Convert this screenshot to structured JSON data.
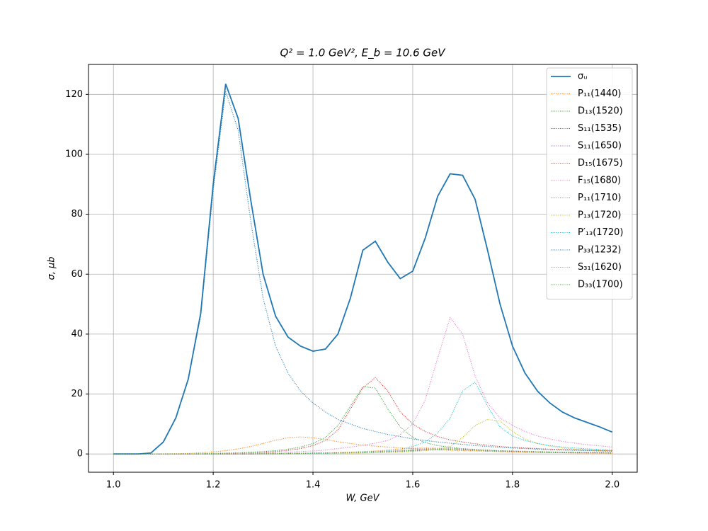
{
  "chart_data": {
    "type": "line",
    "title": "Q² = 1.0 GeV²,  E_b = 10.6 GeV",
    "x_label": "W, GeV",
    "y_label": "σ, μb",
    "xlim": [
      0.95,
      2.05
    ],
    "ylim": [
      -6.1,
      130
    ],
    "xticks": [
      {
        "value": 1,
        "label": "1.0"
      },
      1.2,
      1.4,
      1.6,
      1.8,
      {
        "value": 2,
        "label": "2.0"
      }
    ],
    "yticks": [
      0,
      20,
      40,
      60,
      80,
      100,
      120
    ],
    "grid": true,
    "legend": "upper right",
    "x": [
      1.0,
      1.025,
      1.05,
      1.075,
      1.1,
      1.125,
      1.15,
      1.175,
      1.2,
      1.225,
      1.25,
      1.275,
      1.3,
      1.325,
      1.35,
      1.375,
      1.4,
      1.425,
      1.45,
      1.475,
      1.5,
      1.525,
      1.55,
      1.575,
      1.6,
      1.625,
      1.65,
      1.675,
      1.7,
      1.725,
      1.75,
      1.775,
      1.8,
      1.825,
      1.85,
      1.875,
      1.9,
      1.925,
      1.95,
      1.975,
      2.0
    ],
    "series": [
      {
        "name": "σᵤ",
        "color": "#1f77b4",
        "style": "solid",
        "values": [
          0,
          0,
          0,
          0.3,
          4,
          12,
          25,
          47,
          90,
          123.5,
          112,
          85,
          60,
          46,
          39,
          36,
          34.3,
          35,
          40,
          52,
          68,
          71,
          64,
          58.5,
          61,
          72,
          86,
          93.5,
          93,
          85,
          68,
          50,
          36,
          27,
          21,
          17,
          14,
          12,
          10.5,
          9,
          7.3
        ]
      },
      {
        "name": "P₁₁(1440)",
        "color": "#ff7f0e",
        "style": "dotted",
        "values": [
          0,
          0,
          0,
          0,
          0.05,
          0.1,
          0.2,
          0.4,
          0.7,
          1.1,
          1.7,
          2.5,
          3.5,
          4.6,
          5.4,
          5.7,
          5.4,
          4.8,
          4.1,
          3.5,
          3,
          2.6,
          2.3,
          2,
          1.8,
          1.6,
          1.4,
          1.2,
          1.1,
          1,
          0.9,
          0.8,
          0.7,
          0.6,
          0.55,
          0.5,
          0.45,
          0.4,
          0.35,
          0.3,
          0.3
        ]
      },
      {
        "name": "D₁₃(1520)",
        "color": "#2ca02c",
        "style": "dotted",
        "values": [
          0,
          0,
          0,
          0,
          0,
          0,
          0,
          0.1,
          0.2,
          0.3,
          0.4,
          0.6,
          0.8,
          1.1,
          1.6,
          2.3,
          3.5,
          5.5,
          9.5,
          16,
          22.5,
          22,
          15,
          9,
          5.5,
          3.8,
          2.8,
          2.2,
          1.8,
          1.5,
          1.2,
          1,
          0.9,
          0.8,
          0.7,
          0.6,
          0.5,
          0.45,
          0.4,
          0.35,
          0.3
        ]
      },
      {
        "name": "S₁₁(1535)",
        "color": "#d62728",
        "style": "dotted",
        "values": [
          0,
          0,
          0,
          0,
          0,
          0,
          0,
          0,
          0,
          0.1,
          0.2,
          0.3,
          0.5,
          0.8,
          1.2,
          1.8,
          2.8,
          4.5,
          8,
          15,
          22,
          25.5,
          21,
          14,
          10,
          7.5,
          5.8,
          4.7,
          4,
          3.4,
          2.9,
          2.5,
          2.2,
          2,
          1.8,
          1.6,
          1.5,
          1.4,
          1.3,
          1.2,
          1.1
        ]
      },
      {
        "name": "S₁₁(1650)",
        "color": "#9467bd",
        "style": "dotted",
        "values": [
          0,
          0,
          0,
          0,
          0,
          0,
          0,
          0,
          0,
          0,
          0,
          0,
          0.1,
          0.1,
          0.2,
          0.2,
          0.3,
          0.3,
          0.4,
          0.5,
          0.6,
          0.7,
          0.9,
          1.1,
          1.4,
          1.7,
          1.9,
          1.9,
          1.7,
          1.4,
          1.2,
          1,
          0.9,
          0.8,
          0.7,
          0.6,
          0.5,
          0.5,
          0.4,
          0.4,
          0.4
        ]
      },
      {
        "name": "D₁₅(1675)",
        "color": "#8c564b",
        "style": "dotted",
        "values": [
          0,
          0,
          0,
          0,
          0,
          0,
          0,
          0,
          0,
          0,
          0,
          0,
          0.1,
          0.1,
          0.1,
          0.2,
          0.2,
          0.3,
          0.3,
          0.4,
          0.5,
          0.6,
          0.7,
          0.9,
          1.1,
          1.3,
          1.5,
          1.5,
          1.4,
          1.2,
          1,
          0.8,
          0.7,
          0.6,
          0.5,
          0.5,
          0.4,
          0.4,
          0.3,
          0.3,
          0.3
        ]
      },
      {
        "name": "F₁₅(1680)",
        "color": "#e377c2",
        "style": "dotted",
        "values": [
          0,
          0,
          0,
          0,
          0,
          0,
          0,
          0,
          0,
          0,
          0.1,
          0.2,
          0.3,
          0.4,
          0.6,
          0.8,
          1,
          1.3,
          1.8,
          2.3,
          2.9,
          3.6,
          4.5,
          6.5,
          10,
          18,
          32,
          45.5,
          40,
          26,
          17,
          12,
          9.5,
          7.5,
          6,
          5,
          4.2,
          3.6,
          3.1,
          2.7,
          2.3
        ]
      },
      {
        "name": "P₁₁(1710)",
        "color": "#7f7f7f",
        "style": "dotted",
        "values": [
          0,
          0,
          0,
          0,
          0,
          0,
          0,
          0,
          0,
          0,
          0,
          0,
          0.1,
          0.1,
          0.1,
          0.2,
          0.2,
          0.3,
          0.3,
          0.4,
          0.5,
          0.6,
          0.7,
          0.8,
          1,
          1.2,
          1.4,
          1.5,
          1.5,
          1.4,
          1.3,
          1.1,
          1,
          0.9,
          0.8,
          0.7,
          0.6,
          0.6,
          0.5,
          0.5,
          0.4
        ]
      },
      {
        "name": "P₁₃(1720)",
        "color": "#bcbd22",
        "style": "dotted",
        "values": [
          0,
          0,
          0,
          0,
          0,
          0,
          0,
          0,
          0,
          0,
          0,
          0,
          0,
          0,
          0,
          0,
          0.1,
          0.1,
          0.2,
          0.2,
          0.3,
          0.4,
          0.5,
          0.6,
          0.8,
          1.1,
          1.6,
          2.5,
          5.5,
          9.5,
          11.5,
          11,
          7.5,
          5,
          3.5,
          2.6,
          2,
          1.6,
          1.3,
          1.1,
          1
        ]
      },
      {
        "name": "P′₁₃(1720)",
        "color": "#17becf",
        "style": "dotted",
        "values": [
          0,
          0,
          0,
          0,
          0,
          0,
          0,
          0,
          0,
          0,
          0,
          0,
          0,
          0,
          0.1,
          0.1,
          0.2,
          0.2,
          0.3,
          0.4,
          0.6,
          0.8,
          1.1,
          1.6,
          2.5,
          4,
          7,
          12,
          21,
          24,
          16,
          9,
          6,
          4.5,
          3.5,
          2.8,
          2.3,
          2,
          1.7,
          1.5,
          1.3
        ]
      },
      {
        "name": "P₃₃(1232)",
        "color": "#1f77b4",
        "style": "dotted",
        "values": [
          0,
          0,
          0,
          0.3,
          4,
          12,
          25,
          46,
          88,
          121,
          108,
          78,
          52,
          36,
          27,
          21,
          17,
          14,
          11.5,
          10,
          8.5,
          7.5,
          6.5,
          5.8,
          5,
          4.5,
          4,
          3.6,
          3.2,
          2.8,
          2.5,
          2.2,
          2,
          1.8,
          1.6,
          1.4,
          1.3,
          1.2,
          1.1,
          1,
          0.9
        ]
      },
      {
        "name": "S₃₁(1620)",
        "color": "#ff7f0e",
        "style": "dotted",
        "values": [
          0,
          0,
          0,
          0,
          0,
          0,
          0,
          0,
          0,
          0,
          0,
          0,
          0.1,
          0.1,
          0.2,
          0.2,
          0.3,
          0.4,
          0.5,
          0.6,
          0.8,
          1,
          1.3,
          1.6,
          1.9,
          2,
          1.9,
          1.6,
          1.3,
          1.1,
          0.9,
          0.8,
          0.7,
          0.6,
          0.5,
          0.4,
          0.4,
          0.3,
          0.3,
          0.3,
          0.2
        ]
      },
      {
        "name": "D₃₃(1700)",
        "color": "#2ca02c",
        "style": "dotted",
        "values": [
          0,
          0,
          0,
          0,
          0,
          0,
          0,
          0,
          0,
          0,
          0,
          0,
          0.1,
          0.1,
          0.2,
          0.2,
          0.3,
          0.3,
          0.4,
          0.5,
          0.6,
          0.7,
          0.8,
          1,
          1.2,
          1.4,
          1.5,
          1.5,
          1.4,
          1.3,
          1.2,
          1,
          0.9,
          0.8,
          0.7,
          0.6,
          0.5,
          0.5,
          0.4,
          0.4,
          0.3
        ]
      }
    ]
  }
}
